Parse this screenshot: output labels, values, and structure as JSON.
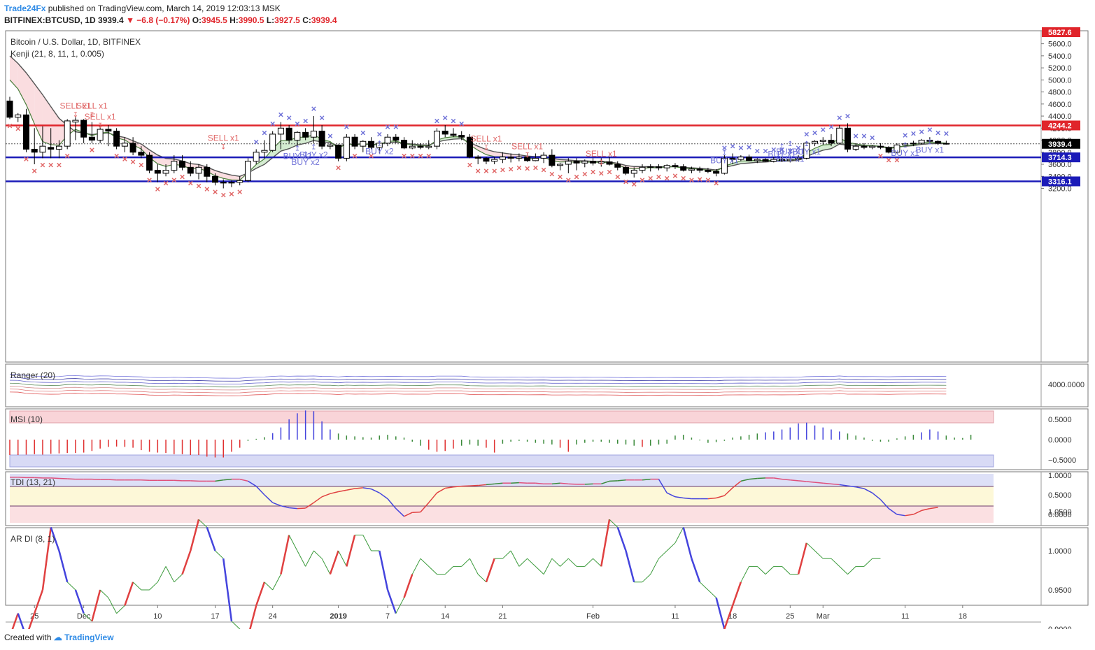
{
  "header": {
    "brand": "Trade24Fx",
    "published": "published on TradingView.com, March 14, 2019 12:03:13 MSK",
    "symbol": "BITFINEX:BTCUSD, 1D",
    "last": "3939.4",
    "change": "−6.8 (−0.17%)",
    "o_label": "O:",
    "o": "3945.5",
    "h_label": "H:",
    "h": "3990.5",
    "l_label": "L:",
    "l": "3927.5",
    "c_label": "C:",
    "c": "3939.4"
  },
  "footer": {
    "created": "Created with",
    "brand": "TradingView"
  },
  "colors": {
    "up": "#ffffff",
    "down": "#000000",
    "hline_red": "#e0252b",
    "hline_blue": "#1b1bb8",
    "sell": "#e06666",
    "buy": "#6f72d8",
    "kenji_fill": "#f9d4d8"
  },
  "chart_data": [
    {
      "type": "candlestick",
      "title": "Bitcoin / U.S. Dollar, 1D, BITFINEX",
      "indicator": "Kenji (21, 8, 11, 1, 0.005)",
      "ylim": [
        3100,
        5750
      ],
      "y_ticks": [
        "5600.0",
        "5400.0",
        "5200.0",
        "5000.0",
        "4800.0",
        "4600.0",
        "4400.0",
        "4200.0",
        "4000.0",
        "3800.0",
        "3600.0",
        "3400.0",
        "3200.0"
      ],
      "x_ticks": [
        {
          "i": 3,
          "label": "25"
        },
        {
          "i": 9,
          "label": "Dec"
        },
        {
          "i": 18,
          "label": "10"
        },
        {
          "i": 25,
          "label": "17"
        },
        {
          "i": 32,
          "label": "24"
        },
        {
          "i": 40,
          "label": "2019"
        },
        {
          "i": 46,
          "label": "7"
        },
        {
          "i": 53,
          "label": "14"
        },
        {
          "i": 60,
          "label": "21"
        },
        {
          "i": 71,
          "label": "Feb"
        },
        {
          "i": 81,
          "label": "11"
        },
        {
          "i": 88,
          "label": "18"
        },
        {
          "i": 95,
          "label": "25"
        },
        {
          "i": 99,
          "label": "Mar"
        },
        {
          "i": 109,
          "label": "11"
        },
        {
          "i": 116,
          "label": "18"
        }
      ],
      "horizontal_levels": [
        {
          "value": 5827.6,
          "label": "5827.6",
          "color": "#e0252b"
        },
        {
          "value": 4244.2,
          "label": "4244.2",
          "color": "#e0252b"
        },
        {
          "value": 3939.4,
          "label": "3939.4",
          "color": "#000000"
        },
        {
          "value": 3714.3,
          "label": "3714.3",
          "color": "#1b1bb8"
        },
        {
          "value": 3316.1,
          "label": "3316.1",
          "color": "#1b1bb8"
        }
      ],
      "ohlc": [
        [
          4650,
          4720,
          4350,
          4380
        ],
        [
          4380,
          4450,
          4300,
          4420
        ],
        [
          4420,
          4520,
          3800,
          3850
        ],
        [
          3850,
          4200,
          3600,
          3800
        ],
        [
          3800,
          4230,
          3700,
          3900
        ],
        [
          3880,
          4200,
          3700,
          3850
        ],
        [
          3850,
          4000,
          3700,
          3900
        ],
        [
          3900,
          4350,
          3850,
          4320
        ],
        [
          4300,
          4380,
          4000,
          4330
        ],
        [
          4330,
          4350,
          3950,
          4050
        ],
        [
          4050,
          4300,
          3950,
          4000
        ],
        [
          4000,
          4250,
          3950,
          4180
        ],
        [
          4180,
          4250,
          3900,
          4150
        ],
        [
          4150,
          4200,
          3850,
          3900
        ],
        [
          3900,
          4050,
          3800,
          3950
        ],
        [
          3950,
          4050,
          3750,
          3800
        ],
        [
          3800,
          3900,
          3700,
          3750
        ],
        [
          3750,
          3800,
          3450,
          3500
        ],
        [
          3500,
          3600,
          3300,
          3450
        ],
        [
          3450,
          3600,
          3400,
          3500
        ],
        [
          3500,
          3750,
          3450,
          3650
        ],
        [
          3650,
          3750,
          3500,
          3550
        ],
        [
          3550,
          3650,
          3400,
          3450
        ],
        [
          3450,
          3600,
          3350,
          3550
        ],
        [
          3550,
          3600,
          3300,
          3400
        ],
        [
          3400,
          3450,
          3250,
          3300
        ],
        [
          3300,
          3350,
          3200,
          3300
        ],
        [
          3300,
          3330,
          3220,
          3300
        ],
        [
          3300,
          3400,
          3250,
          3330
        ],
        [
          3330,
          3700,
          3300,
          3650
        ],
        [
          3650,
          3850,
          3600,
          3800
        ],
        [
          3800,
          4000,
          3700,
          3830
        ],
        [
          3830,
          4150,
          3800,
          4100
        ],
        [
          4100,
          4300,
          3850,
          4200
        ],
        [
          4200,
          4250,
          3950,
          4000
        ],
        [
          4000,
          4150,
          3900,
          4130
        ],
        [
          4130,
          4200,
          4000,
          4050
        ],
        [
          4050,
          4400,
          3950,
          4150
        ],
        [
          4150,
          4250,
          3850,
          3900
        ],
        [
          3900,
          3950,
          3850,
          3920
        ],
        [
          3920,
          3930,
          3650,
          3700
        ],
        [
          3700,
          4100,
          3650,
          4050
        ],
        [
          4050,
          4100,
          3850,
          3900
        ],
        [
          3900,
          4000,
          3800,
          3980
        ],
        [
          3980,
          4050,
          3850,
          3880
        ],
        [
          3880,
          3980,
          3780,
          3950
        ],
        [
          3950,
          4100,
          3900,
          4050
        ],
        [
          4050,
          4100,
          3950,
          4000
        ],
        [
          4000,
          4050,
          3850,
          3870
        ],
        [
          3870,
          4000,
          3850,
          3900
        ],
        [
          3900,
          3950,
          3850,
          3880
        ],
        [
          3880,
          4000,
          3850,
          3900
        ],
        [
          3900,
          4200,
          3850,
          4150
        ],
        [
          4150,
          4250,
          4050,
          4100
        ],
        [
          4100,
          4200,
          4050,
          4080
        ],
        [
          4080,
          4150,
          4000,
          4050
        ],
        [
          4050,
          4100,
          3700,
          3720
        ],
        [
          3720,
          3750,
          3600,
          3700
        ],
        [
          3700,
          3720,
          3600,
          3650
        ],
        [
          3650,
          3720,
          3600,
          3680
        ],
        [
          3680,
          3800,
          3620,
          3720
        ],
        [
          3720,
          3780,
          3630,
          3700
        ],
        [
          3700,
          3780,
          3650,
          3720
        ],
        [
          3720,
          3790,
          3640,
          3660
        ],
        [
          3660,
          3780,
          3650,
          3700
        ],
        [
          3700,
          3800,
          3620,
          3750
        ],
        [
          3750,
          3850,
          3550,
          3580
        ],
        [
          3580,
          3620,
          3500,
          3600
        ],
        [
          3600,
          3700,
          3450,
          3650
        ],
        [
          3650,
          3700,
          3500,
          3620
        ],
        [
          3620,
          3680,
          3550,
          3650
        ],
        [
          3650,
          3700,
          3580,
          3620
        ],
        [
          3620,
          3700,
          3560,
          3640
        ],
        [
          3640,
          3720,
          3580,
          3600
        ],
        [
          3600,
          3650,
          3500,
          3550
        ],
        [
          3550,
          3570,
          3420,
          3450
        ],
        [
          3450,
          3550,
          3380,
          3500
        ],
        [
          3500,
          3600,
          3450,
          3550
        ],
        [
          3550,
          3600,
          3480,
          3560
        ],
        [
          3560,
          3600,
          3500,
          3540
        ],
        [
          3540,
          3600,
          3480,
          3580
        ],
        [
          3580,
          3620,
          3520,
          3560
        ],
        [
          3560,
          3600,
          3480,
          3500
        ],
        [
          3500,
          3560,
          3450,
          3520
        ],
        [
          3520,
          3560,
          3460,
          3500
        ],
        [
          3500,
          3540,
          3450,
          3480
        ],
        [
          3480,
          3520,
          3400,
          3450
        ],
        [
          3450,
          3750,
          3430,
          3700
        ],
        [
          3700,
          3780,
          3600,
          3680
        ],
        [
          3680,
          3750,
          3650,
          3720
        ],
        [
          3720,
          3760,
          3650,
          3660
        ],
        [
          3660,
          3700,
          3620,
          3680
        ],
        [
          3680,
          3700,
          3640,
          3650
        ],
        [
          3650,
          3720,
          3630,
          3680
        ],
        [
          3680,
          3720,
          3640,
          3660
        ],
        [
          3660,
          3700,
          3630,
          3680
        ],
        [
          3680,
          3750,
          3640,
          3700
        ],
        [
          3700,
          3980,
          3680,
          3950
        ],
        [
          3950,
          4000,
          3900,
          3980
        ],
        [
          3980,
          4050,
          3920,
          4000
        ],
        [
          4000,
          4100,
          3900,
          3950
        ],
        [
          3950,
          4250,
          3940,
          4200
        ],
        [
          4200,
          4280,
          3800,
          3850
        ],
        [
          3850,
          3950,
          3820,
          3900
        ],
        [
          3900,
          3950,
          3850,
          3880
        ],
        [
          3880,
          3920,
          3850,
          3900
        ],
        [
          3900,
          3950,
          3850,
          3880
        ],
        [
          3880,
          3900,
          3780,
          3800
        ],
        [
          3800,
          3950,
          3780,
          3920
        ],
        [
          3920,
          3960,
          3880,
          3940
        ],
        [
          3940,
          3990,
          3900,
          3950
        ],
        [
          3950,
          4020,
          3930,
          4000
        ],
        [
          4000,
          4050,
          3950,
          3980
        ],
        [
          3980,
          4000,
          3920,
          3950
        ],
        [
          3945.5,
          3990.5,
          3927.5,
          3939.4
        ]
      ],
      "signals": [
        {
          "i": 8,
          "label": "SELL x1",
          "kind": "sell",
          "value": 4520
        },
        {
          "i": 10,
          "label": "SELL x1",
          "kind": "sell",
          "value": 4520
        },
        {
          "i": 11,
          "label": "SELL x1",
          "kind": "sell",
          "value": 4340
        },
        {
          "i": 26,
          "label": "SELL x1",
          "kind": "sell",
          "value": 3990
        },
        {
          "i": 35,
          "label": "BUY x2",
          "kind": "buy",
          "value": 3690
        },
        {
          "i": 37,
          "label": "BUY x2",
          "kind": "buy",
          "value": 3710
        },
        {
          "i": 36,
          "label": "BUY x2",
          "kind": "buy",
          "value": 3590
        },
        {
          "i": 45,
          "label": "BUY x2",
          "kind": "buy",
          "value": 3770
        },
        {
          "i": 58,
          "label": "SELL x1",
          "kind": "sell",
          "value": 3980
        },
        {
          "i": 63,
          "label": "SELL x1",
          "kind": "sell",
          "value": 3850
        },
        {
          "i": 72,
          "label": "SELL x1",
          "kind": "sell",
          "value": 3730
        },
        {
          "i": 87,
          "label": "BUY x1",
          "kind": "buy",
          "value": 3620
        },
        {
          "i": 94,
          "label": "BUY x1",
          "kind": "buy",
          "value": 3720
        },
        {
          "i": 95,
          "label": "BUY x1",
          "kind": "buy",
          "value": 3760
        },
        {
          "i": 97,
          "label": "BUY x1",
          "kind": "buy",
          "value": 3760
        },
        {
          "i": 95,
          "label": "BUY x1",
          "kind": "buy",
          "value": 3640
        },
        {
          "i": 109,
          "label": "BUY x1",
          "kind": "buy",
          "value": 3740
        },
        {
          "i": 112,
          "label": "BUY x1",
          "kind": "buy",
          "value": 3790
        }
      ]
    },
    {
      "type": "line",
      "title": "Ranger (20)",
      "y_ticks": [
        "4000.0000"
      ]
    },
    {
      "type": "bar",
      "title": "MSI (10)",
      "y_ticks": [
        "0.5000",
        "0.0000",
        "−0.5000"
      ],
      "values": [
        -0.38,
        -0.38,
        -0.37,
        -0.36,
        -0.37,
        -0.35,
        -0.34,
        -0.33,
        -0.33,
        -0.32,
        -0.28,
        -0.22,
        -0.18,
        -0.17,
        -0.18,
        -0.2,
        -0.26,
        -0.3,
        -0.32,
        -0.33,
        -0.36,
        -0.36,
        -0.38,
        -0.38,
        -0.42,
        -0.44,
        -0.44,
        -0.3,
        -0.2,
        -0.03,
        0.02,
        0.06,
        0.16,
        0.3,
        0.5,
        0.65,
        0.72,
        0.7,
        0.45,
        0.25,
        0.15,
        0.1,
        0.08,
        0.06,
        0.05,
        0.1,
        0.12,
        0.08,
        0.05,
        -0.05,
        -0.15,
        -0.25,
        -0.3,
        -0.28,
        -0.22,
        -0.15,
        -0.12,
        -0.15,
        -0.2,
        -0.32,
        -0.1,
        -0.05,
        -0.03,
        -0.05,
        -0.08,
        -0.1,
        -0.12,
        -0.2,
        -0.3,
        -0.12,
        -0.08,
        -0.05,
        -0.05,
        -0.08,
        -0.1,
        -0.12,
        -0.15,
        -0.18,
        -0.15,
        -0.12,
        -0.1,
        0.1,
        0.12,
        0.05,
        -0.02,
        -0.08,
        -0.06,
        -0.03,
        0.05,
        0.08,
        0.12,
        0.15,
        0.18,
        0.2,
        0.25,
        0.3,
        0.4,
        0.42,
        0.35,
        0.3,
        0.25,
        0.2,
        0.15,
        0.1,
        0.05,
        -0.03,
        -0.05,
        -0.05,
        0.03,
        0.08,
        0.12,
        0.18,
        0.25,
        0.2,
        0.1,
        0.05,
        0.04,
        0.12
      ]
    },
    {
      "type": "line",
      "title": "TDI (13, 21)",
      "y_ticks": [
        "1.0000",
        "0.5000",
        "0.0000"
      ],
      "values": [
        0.95,
        0.95,
        0.94,
        0.94,
        0.93,
        0.93,
        0.92,
        0.91,
        0.9,
        0.9,
        0.9,
        0.89,
        0.89,
        0.88,
        0.88,
        0.88,
        0.88,
        0.87,
        0.87,
        0.87,
        0.87,
        0.86,
        0.86,
        0.85,
        0.85,
        0.85,
        0.88,
        0.9,
        0.9,
        0.85,
        0.72,
        0.5,
        0.3,
        0.22,
        0.17,
        0.15,
        0.16,
        0.3,
        0.45,
        0.53,
        0.58,
        0.62,
        0.66,
        0.68,
        0.65,
        0.55,
        0.4,
        0.15,
        -0.05,
        0.05,
        0.06,
        0.3,
        0.55,
        0.67,
        0.7,
        0.72,
        0.73,
        0.74,
        0.76,
        0.78,
        0.8,
        0.8,
        0.81,
        0.8,
        0.8,
        0.78,
        0.78,
        0.8,
        0.78,
        0.77,
        0.77,
        0.78,
        0.78,
        0.85,
        0.86,
        0.88,
        0.88,
        0.88,
        0.9,
        0.9,
        0.55,
        0.45,
        0.42,
        0.4,
        0.4,
        0.4,
        0.42,
        0.48,
        0.68,
        0.85,
        0.9,
        0.92,
        0.93,
        0.93,
        0.9,
        0.88,
        0.86,
        0.84,
        0.82,
        0.8,
        0.78,
        0.76,
        0.73,
        0.7,
        0.66,
        0.55,
        0.38,
        0.15,
        0.0,
        -0.03,
        0.0,
        0.1,
        0.15,
        0.18
      ]
    },
    {
      "type": "line",
      "title": "AR DI (8, 1)",
      "y_ticks": [
        "1.0500",
        "1.0000",
        "0.9500",
        "0.9000"
      ],
      "values": [
        0.89,
        0.92,
        0.89,
        0.92,
        0.95,
        1.03,
        1.0,
        0.96,
        0.95,
        0.92,
        0.91,
        0.95,
        0.94,
        0.92,
        0.93,
        0.96,
        0.95,
        0.95,
        0.96,
        0.98,
        0.96,
        0.97,
        1.0,
        1.04,
        1.03,
        1.0,
        0.99,
        0.91,
        0.9,
        0.89,
        0.93,
        0.96,
        0.95,
        0.97,
        1.02,
        1.0,
        0.98,
        1.0,
        0.99,
        0.97,
        1.0,
        0.98,
        1.02,
        1.02,
        1.0,
        1.0,
        0.95,
        0.92,
        0.94,
        0.97,
        0.99,
        0.98,
        0.97,
        0.97,
        0.98,
        0.98,
        0.99,
        0.97,
        0.96,
        0.99,
        0.99,
        1.0,
        0.98,
        0.99,
        0.98,
        0.97,
        0.99,
        0.98,
        0.99,
        0.98,
        0.98,
        0.99,
        0.98,
        1.04,
        1.03,
        1.0,
        0.96,
        0.96,
        0.97,
        0.99,
        1.0,
        1.01,
        1.03,
        0.99,
        0.96,
        0.95,
        0.94,
        0.9,
        0.93,
        0.96,
        0.98,
        0.98,
        0.97,
        0.98,
        0.98,
        0.97,
        0.97,
        1.01,
        1.0,
        0.99,
        0.99,
        0.98,
        0.97,
        0.98,
        0.98,
        0.99,
        0.99
      ]
    }
  ]
}
